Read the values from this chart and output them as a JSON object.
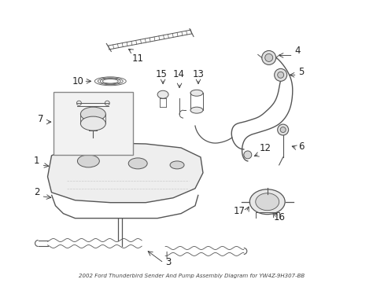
{
  "title": "2002 Ford Thunderbird Sender And Pump Assembly Diagram for YW4Z-9H307-BB",
  "bg_color": "#ffffff",
  "fig_width": 4.89,
  "fig_height": 3.6,
  "dpi": 100,
  "line_color": "#555555",
  "dark_color": "#333333",
  "label_color": "#222222",
  "label_fontsize": 8.5,
  "title_fontsize": 5.0,
  "title_color": "#444444"
}
